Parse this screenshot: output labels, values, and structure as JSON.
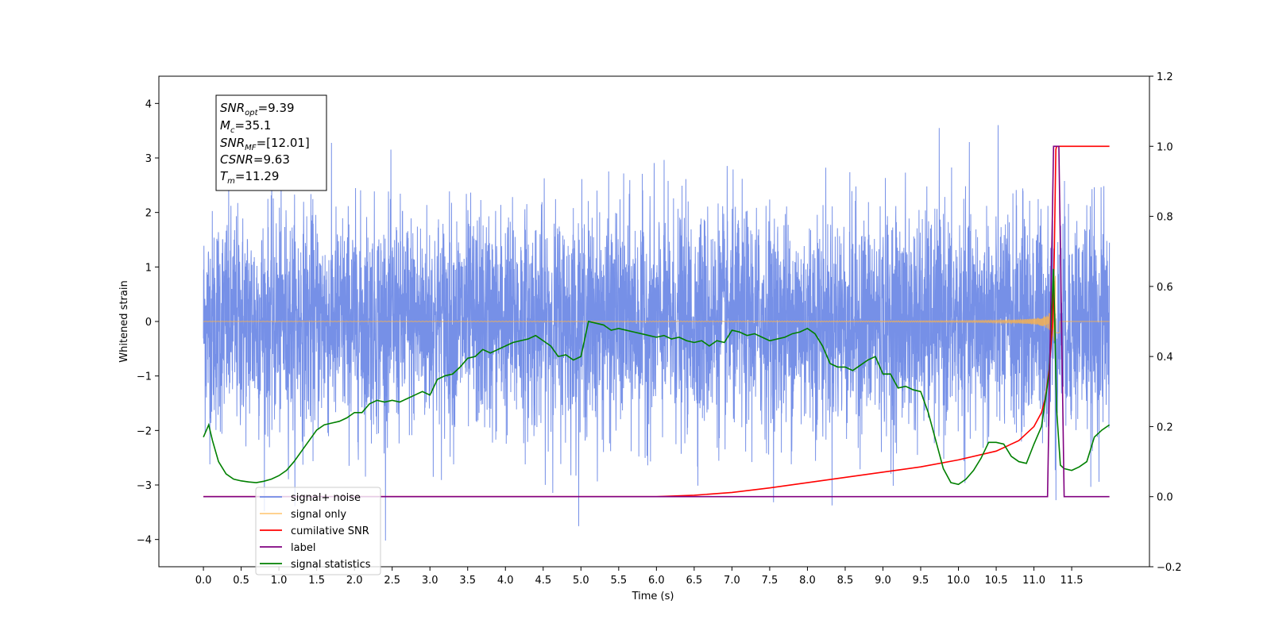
{
  "chart_data": {
    "type": "line",
    "xlabel": "Time (s)",
    "ylabel": "Whitened strain",
    "xlim": [
      -0.59,
      12.53
    ],
    "ylim": [
      -4.5,
      4.5
    ],
    "y2lim": [
      -0.2,
      1.2
    ],
    "x_ticks": [
      "0.0",
      "0.5",
      "1.0",
      "1.5",
      "2.0",
      "2.5",
      "3.0",
      "3.5",
      "4.0",
      "4.5",
      "5.0",
      "5.5",
      "6.0",
      "6.5",
      "7.0",
      "7.5",
      "8.0",
      "8.5",
      "9.0",
      "9.5",
      "10.0",
      "10.5",
      "11.0",
      "11.5"
    ],
    "y_ticks": [
      "−4",
      "−3",
      "−2",
      "−1",
      "0",
      "1",
      "2",
      "3",
      "4"
    ],
    "y2_ticks": [
      "−0.2",
      "0.0",
      "0.2",
      "0.4",
      "0.6",
      "0.8",
      "1.0",
      "1.2"
    ],
    "info_box": [
      {
        "main": "SNR",
        "sub": "opt",
        "value": "=9.39"
      },
      {
        "main": "M",
        "sub": "c",
        "value": "=35.1"
      },
      {
        "main": "SNR",
        "sub": "MF",
        "value": "=[12.01]"
      },
      {
        "main": "CSNR",
        "sub": "",
        "value": "=9.63"
      },
      {
        "main": "T",
        "sub": "m",
        "value": "=11.29"
      }
    ],
    "legend": {
      "placement": "lower-left",
      "entries": [
        {
          "label": "signal+ noise",
          "color": "#6f8ae6"
        },
        {
          "label": "signal only",
          "color": "#ffcc80"
        },
        {
          "label": "cumilative SNR",
          "color": "#ff0000"
        },
        {
          "label": "label",
          "color": "#800080"
        },
        {
          "label": "signal statistics",
          "color": "#008000"
        }
      ]
    },
    "series": [
      {
        "name": "signal+ noise",
        "axis": "left",
        "color": "#6f8ae6",
        "noise_std": 1.0,
        "x_range": [
          0.0,
          12.0
        ]
      },
      {
        "name": "signal only",
        "axis": "left",
        "color": "#ffb347",
        "x_range": [
          0.0,
          12.0
        ],
        "merger_time": 11.29,
        "peak_amplitude": 1.1
      },
      {
        "name": "cumilative SNR",
        "axis": "right",
        "color": "#ff0000",
        "x": [
          0.0,
          6.0,
          6.5,
          7.0,
          7.5,
          8.0,
          8.5,
          9.0,
          9.5,
          10.0,
          10.5,
          10.8,
          11.0,
          11.1,
          11.15,
          11.2,
          11.25,
          11.27,
          11.29,
          11.3,
          11.5,
          12.0
        ],
        "y": [
          0.0,
          0.0,
          0.004,
          0.012,
          0.025,
          0.04,
          0.055,
          0.07,
          0.085,
          0.105,
          0.13,
          0.16,
          0.2,
          0.24,
          0.28,
          0.36,
          0.5,
          0.7,
          0.99,
          1.0,
          1.0,
          1.0
        ]
      },
      {
        "name": "label",
        "axis": "right",
        "color": "#800080",
        "x": [
          0.0,
          11.18,
          11.26,
          11.33,
          11.4,
          12.0
        ],
        "y": [
          0.0,
          0.0,
          1.0,
          1.0,
          0.0,
          0.0
        ]
      },
      {
        "name": "signal statistics",
        "axis": "right",
        "color": "#008000",
        "x": [
          0.0,
          0.07,
          0.12,
          0.2,
          0.3,
          0.4,
          0.5,
          0.6,
          0.7,
          0.8,
          0.9,
          1.0,
          1.1,
          1.2,
          1.3,
          1.4,
          1.5,
          1.6,
          1.7,
          1.8,
          1.9,
          2.0,
          2.1,
          2.2,
          2.3,
          2.4,
          2.5,
          2.6,
          2.7,
          2.8,
          2.9,
          3.0,
          3.1,
          3.2,
          3.3,
          3.4,
          3.5,
          3.6,
          3.7,
          3.8,
          3.9,
          4.0,
          4.1,
          4.2,
          4.3,
          4.4,
          4.5,
          4.6,
          4.7,
          4.8,
          4.9,
          5.0,
          5.1,
          5.2,
          5.3,
          5.4,
          5.5,
          5.6,
          5.7,
          5.8,
          5.9,
          6.0,
          6.1,
          6.2,
          6.3,
          6.4,
          6.5,
          6.6,
          6.7,
          6.8,
          6.9,
          7.0,
          7.1,
          7.2,
          7.3,
          7.4,
          7.5,
          7.6,
          7.7,
          7.8,
          7.9,
          8.0,
          8.1,
          8.2,
          8.3,
          8.4,
          8.5,
          8.6,
          8.7,
          8.8,
          8.9,
          9.0,
          9.1,
          9.2,
          9.3,
          9.4,
          9.5,
          9.6,
          9.7,
          9.8,
          9.9,
          10.0,
          10.1,
          10.2,
          10.3,
          10.4,
          10.5,
          10.6,
          10.7,
          10.8,
          10.9,
          11.0,
          11.1,
          11.2,
          11.26,
          11.3,
          11.35,
          11.4,
          11.5,
          11.6,
          11.7,
          11.8,
          11.9,
          12.0
        ],
        "y": [
          0.17,
          0.205,
          0.16,
          0.1,
          0.065,
          0.05,
          0.045,
          0.042,
          0.04,
          0.044,
          0.05,
          0.06,
          0.075,
          0.1,
          0.13,
          0.16,
          0.19,
          0.205,
          0.21,
          0.215,
          0.225,
          0.24,
          0.24,
          0.265,
          0.275,
          0.27,
          0.275,
          0.27,
          0.28,
          0.29,
          0.3,
          0.29,
          0.335,
          0.345,
          0.35,
          0.37,
          0.395,
          0.4,
          0.42,
          0.41,
          0.42,
          0.43,
          0.44,
          0.445,
          0.45,
          0.46,
          0.445,
          0.43,
          0.4,
          0.405,
          0.39,
          0.4,
          0.5,
          0.495,
          0.49,
          0.475,
          0.48,
          0.475,
          0.47,
          0.465,
          0.46,
          0.455,
          0.46,
          0.45,
          0.455,
          0.445,
          0.44,
          0.445,
          0.43,
          0.445,
          0.44,
          0.475,
          0.47,
          0.46,
          0.465,
          0.455,
          0.445,
          0.45,
          0.455,
          0.465,
          0.47,
          0.48,
          0.465,
          0.43,
          0.38,
          0.37,
          0.37,
          0.36,
          0.375,
          0.39,
          0.4,
          0.35,
          0.35,
          0.31,
          0.315,
          0.305,
          0.3,
          0.24,
          0.16,
          0.08,
          0.04,
          0.035,
          0.05,
          0.075,
          0.11,
          0.155,
          0.155,
          0.15,
          0.115,
          0.1,
          0.095,
          0.15,
          0.2,
          0.35,
          0.65,
          0.25,
          0.09,
          0.08,
          0.075,
          0.085,
          0.1,
          0.17,
          0.19,
          0.205
        ]
      }
    ]
  }
}
